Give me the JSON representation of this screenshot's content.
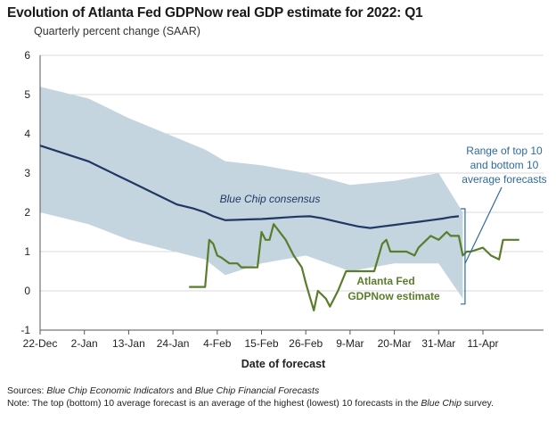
{
  "chart_data": {
    "type": "line",
    "title": "Evolution of Atlanta Fed GDPNow real GDP estimate for 2022: Q1",
    "subtitle": "Quarterly percent change (SAAR)",
    "xlabel": "Date of forecast",
    "ylabel": "",
    "ylim": [
      -1,
      6
    ],
    "yticks": [
      "-1",
      "0",
      "1",
      "2",
      "3",
      "4",
      "5",
      "6"
    ],
    "xticks": [
      "22-Dec",
      "2-Jan",
      "13-Jan",
      "24-Jan",
      "4-Feb",
      "15-Feb",
      "26-Feb",
      "9-Mar",
      "20-Mar",
      "31-Mar",
      "11-Apr"
    ],
    "grid": "horizontal",
    "colors": {
      "band": "#c4d5e0",
      "blue_chip": "#1f3864",
      "gdpnow": "#5a7d2a",
      "bracket": "#2e6a9e"
    },
    "series": [
      {
        "name": "Blue Chip consensus",
        "x": [
          "22-Dec",
          "3-Jan",
          "5-Jan",
          "7-Jan",
          "10-Jan",
          "13-Jan",
          "16-Jan",
          "19-Jan",
          "22-Jan",
          "25-Jan",
          "29-Jan",
          "1-Feb",
          "3-Feb",
          "6-Feb",
          "9-Feb",
          "12-Feb",
          "15-Feb",
          "18-Feb",
          "21-Feb",
          "24-Feb",
          "27-Feb",
          "2-Mar",
          "5-Mar",
          "8-Mar",
          "11-Mar",
          "14-Mar",
          "17-Mar",
          "20-Mar",
          "23-Mar",
          "26-Mar",
          "29-Mar",
          "1-Apr",
          "3-Apr",
          "5-Apr"
        ],
        "values": [
          3.7,
          3.3,
          3.2,
          3.1,
          2.95,
          2.8,
          2.65,
          2.5,
          2.35,
          2.2,
          2.1,
          2.0,
          1.9,
          1.8,
          1.81,
          1.82,
          1.83,
          1.85,
          1.87,
          1.89,
          1.9,
          1.85,
          1.78,
          1.71,
          1.64,
          1.6,
          1.64,
          1.68,
          1.72,
          1.76,
          1.8,
          1.84,
          1.88,
          1.9
        ]
      },
      {
        "name": "Top 10 average",
        "x": [
          "22-Dec",
          "3-Jan",
          "13-Jan",
          "1-Feb",
          "6-Feb",
          "15-Feb",
          "26-Feb",
          "9-Mar",
          "20-Mar",
          "31-Mar",
          "6-Apr"
        ],
        "values": [
          5.2,
          4.9,
          4.4,
          3.6,
          3.3,
          3.2,
          3.0,
          2.7,
          2.8,
          3.0,
          2.0
        ]
      },
      {
        "name": "Bottom 10 average",
        "x": [
          "22-Dec",
          "3-Jan",
          "13-Jan",
          "1-Feb",
          "6-Feb",
          "15-Feb",
          "26-Feb",
          "9-Mar",
          "20-Mar",
          "31-Mar",
          "6-Apr"
        ],
        "values": [
          2.0,
          1.7,
          1.3,
          0.8,
          0.4,
          0.7,
          0.9,
          0.5,
          0.7,
          0.7,
          -0.2
        ]
      },
      {
        "name": "Atlanta Fed GDPNow estimate",
        "x": [
          "28-Jan",
          "31-Jan",
          "1-Feb",
          "2-Feb",
          "3-Feb",
          "4-Feb",
          "5-Feb",
          "7-Feb",
          "9-Feb",
          "10-Feb",
          "11-Feb",
          "14-Feb",
          "15-Feb",
          "16-Feb",
          "17-Feb",
          "18-Feb",
          "21-Feb",
          "23-Feb",
          "25-Feb",
          "26-Feb",
          "28-Feb",
          "1-Mar",
          "2-Mar",
          "3-Mar",
          "4-Mar",
          "6-Mar",
          "8-Mar",
          "9-Mar",
          "12-Mar",
          "15-Mar",
          "17-Mar",
          "18-Mar",
          "19-Mar",
          "20-Mar",
          "23-Mar",
          "25-Mar",
          "26-Mar",
          "29-Mar",
          "31-Mar",
          "2-Apr",
          "3-Apr",
          "4-Apr",
          "5-Apr",
          "6-Apr",
          "7-Apr",
          "8-Apr",
          "11-Apr",
          "13-Apr",
          "15-Apr",
          "16-Apr",
          "20-Apr"
        ],
        "values": [
          0.1,
          0.1,
          0.1,
          1.3,
          1.2,
          0.9,
          0.85,
          0.7,
          0.7,
          0.6,
          0.6,
          0.6,
          1.5,
          1.3,
          1.3,
          1.7,
          1.3,
          0.9,
          0.6,
          0.2,
          -0.5,
          0.0,
          -0.1,
          -0.2,
          -0.4,
          0.0,
          0.5,
          0.5,
          0.5,
          0.5,
          1.2,
          1.3,
          1.0,
          1.0,
          1.0,
          0.9,
          1.1,
          1.4,
          1.3,
          1.5,
          1.4,
          1.4,
          1.4,
          0.9,
          1.0,
          1.0,
          1.1,
          0.9,
          0.8,
          1.3,
          1.3
        ]
      }
    ],
    "annotations": {
      "blue_chip_label": "Blue Chip consensus",
      "gdpnow_label_line1": "Atlanta Fed",
      "gdpnow_label_line2": "GDPNow estimate",
      "range_line1": "Range of top 10",
      "range_line2": "and bottom 10",
      "range_line3": "average forecasts"
    }
  },
  "footer": {
    "sources_label": "Sources:",
    "sources_text1": "Blue Chip Economic Indicators",
    "sources_and": "and",
    "sources_text2": "Blue Chip Financial Forecasts",
    "note_label": "Note:",
    "note_text": "The top (bottom) 10 average forecast is an average of the highest (lowest) 10 forecasts in the",
    "note_italic": "Blue Chip",
    "note_end": "survey."
  }
}
